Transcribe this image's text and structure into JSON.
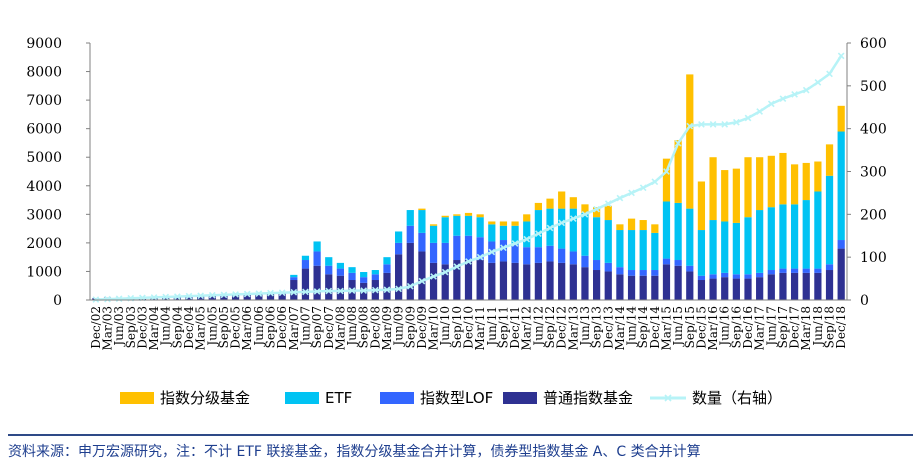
{
  "chart_data": {
    "type": "bar",
    "stacked": true,
    "categories": [
      "Dec/02",
      "Mar/03",
      "Jun/03",
      "Sep/03",
      "Dec/03",
      "Mar/04",
      "Jun/04",
      "Sep/04",
      "Dec/04",
      "Mar/05",
      "Jun/05",
      "Sep/05",
      "Dec/05",
      "Mar/06",
      "Jun/06",
      "Sep/06",
      "Dec/06",
      "Mar/07",
      "Jun/07",
      "Sep/07",
      "Dec/07",
      "Mar/08",
      "Jun/08",
      "Sep/08",
      "Dec/08",
      "Mar/09",
      "Jun/09",
      "Sep/09",
      "Dec/09",
      "Mar/10",
      "Jun/10",
      "Sep/10",
      "Dec/10",
      "Mar/11",
      "Jun/11",
      "Sep/11",
      "Dec/11",
      "Mar/12",
      "Jun/12",
      "Sep/12",
      "Dec/12",
      "Mar/13",
      "Jun/13",
      "Sep/13",
      "Dec/13",
      "Mar/14",
      "Jun/14",
      "Sep/14",
      "Dec/14",
      "Mar/15",
      "Jun/15",
      "Sep/15",
      "Dec/15",
      "Mar/16",
      "Jun/16",
      "Sep/16",
      "Dec/16",
      "Mar/17",
      "Jun/17",
      "Sep/17",
      "Dec/17",
      "Mar/18",
      "Jun/18",
      "Sep/18",
      "Dec/18"
    ],
    "y_left": {
      "range": [
        0,
        9000
      ],
      "ticks": [
        "0",
        "1000",
        "2000",
        "3000",
        "4000",
        "5000",
        "6000",
        "7000",
        "8000",
        "9000"
      ]
    },
    "y_right": {
      "range": [
        0,
        600
      ],
      "ticks": [
        "0",
        "100",
        "200",
        "300",
        "400",
        "500",
        "600"
      ]
    },
    "series": [
      {
        "name": "普通指数基金",
        "color": "#2e3192",
        "axis": "left",
        "values": [
          60,
          80,
          80,
          90,
          90,
          100,
          110,
          120,
          130,
          140,
          150,
          160,
          170,
          180,
          200,
          230,
          280,
          700,
          1100,
          1200,
          900,
          850,
          700,
          600,
          700,
          950,
          1600,
          2000,
          1700,
          1300,
          1250,
          1400,
          1400,
          1400,
          1300,
          1350,
          1300,
          1250,
          1300,
          1350,
          1300,
          1250,
          1150,
          1050,
          1000,
          900,
          850,
          850,
          850,
          1250,
          1200,
          1000,
          700,
          750,
          800,
          750,
          750,
          800,
          900,
          950,
          950,
          950,
          950,
          1050,
          1800
        ]
      },
      {
        "name": "指数型LOF",
        "color": "#3366ff",
        "axis": "left",
        "values": [
          0,
          0,
          0,
          0,
          0,
          0,
          0,
          0,
          0,
          0,
          0,
          0,
          0,
          0,
          0,
          0,
          0,
          100,
          300,
          500,
          300,
          250,
          250,
          200,
          200,
          300,
          400,
          600,
          650,
          700,
          750,
          850,
          850,
          800,
          750,
          750,
          650,
          600,
          550,
          550,
          500,
          450,
          400,
          350,
          300,
          250,
          200,
          200,
          200,
          200,
          200,
          200,
          150,
          150,
          150,
          150,
          150,
          150,
          150,
          150,
          150,
          150,
          150,
          200,
          300
        ]
      },
      {
        "name": "ETF",
        "color": "#00c3f3",
        "axis": "left",
        "values": [
          0,
          0,
          0,
          0,
          0,
          0,
          0,
          0,
          0,
          0,
          0,
          0,
          0,
          0,
          0,
          0,
          0,
          80,
          150,
          350,
          300,
          200,
          200,
          180,
          150,
          250,
          400,
          550,
          800,
          600,
          900,
          700,
          700,
          700,
          600,
          500,
          650,
          900,
          1300,
          1300,
          1400,
          1500,
          1500,
          1500,
          1500,
          1300,
          1400,
          1400,
          1300,
          2000,
          2000,
          2000,
          1600,
          1900,
          1800,
          1800,
          2000,
          2200,
          2200,
          2250,
          2250,
          2400,
          2700,
          3100,
          3800
        ]
      },
      {
        "name": "指数分级基金",
        "color": "#ffc000",
        "axis": "left",
        "values": [
          0,
          0,
          0,
          0,
          0,
          0,
          0,
          0,
          0,
          0,
          0,
          0,
          0,
          0,
          0,
          0,
          0,
          0,
          0,
          0,
          0,
          0,
          0,
          0,
          0,
          0,
          0,
          0,
          50,
          50,
          50,
          50,
          100,
          100,
          100,
          150,
          150,
          250,
          250,
          350,
          600,
          400,
          300,
          350,
          500,
          200,
          400,
          350,
          300,
          1500,
          2200,
          4700,
          1700,
          2200,
          1800,
          1900,
          2100,
          1850,
          1800,
          1800,
          1400,
          1300,
          1050,
          1100,
          900
        ]
      },
      {
        "name": "数量（右轴）",
        "color": "#b7f3f7",
        "axis": "right",
        "type": "line",
        "values": [
          1,
          2,
          3,
          4,
          5,
          6,
          7,
          8,
          9,
          10,
          11,
          12,
          13,
          14,
          15,
          16,
          17,
          18,
          19,
          20,
          21,
          21,
          22,
          22,
          23,
          24,
          26,
          32,
          44,
          55,
          65,
          78,
          90,
          100,
          112,
          122,
          132,
          142,
          155,
          168,
          180,
          190,
          200,
          212,
          225,
          238,
          250,
          262,
          276,
          300,
          366,
          406,
          410,
          410,
          410,
          415,
          425,
          440,
          458,
          470,
          480,
          490,
          508,
          528,
          570
        ]
      }
    ],
    "legend": {
      "placement": "bottom"
    }
  },
  "source_note": "资料来源：申万宏源研究，注：不计 ETF 联接基金，指数分级基金合并计算，债券型指数基金 A、C 类合并计算"
}
